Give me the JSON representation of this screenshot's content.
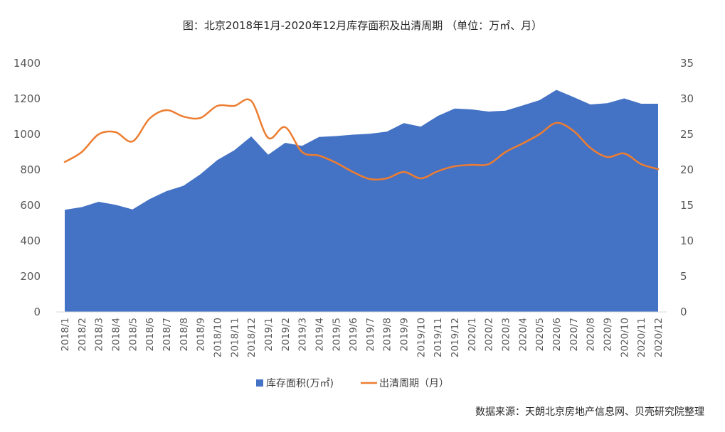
{
  "chart_data": {
    "type": "area",
    "title": "图：北京2018年1月-2020年12月库存面积及出清周期 （单位：万㎡、月）",
    "categories": [
      "2018/1",
      "2018/2",
      "2018/3",
      "2018/4",
      "2018/5",
      "2018/6",
      "2018/7",
      "2018/8",
      "2018/9",
      "2018/10",
      "2018/11",
      "2018/12",
      "2019/1",
      "2019/2",
      "2019/3",
      "2019/4",
      "2019/5",
      "2019/6",
      "2019/7",
      "2019/8",
      "2019/9",
      "2019/10",
      "2019/11",
      "2019/12",
      "2020/1",
      "2020/2",
      "2020/3",
      "2020/4",
      "2020/5",
      "2020/6",
      "2020/7",
      "2020/8",
      "2020/9",
      "2020/10",
      "2020/11",
      "2020/12"
    ],
    "series": [
      {
        "name": "库存面积(万㎡)",
        "type": "area",
        "axis": "left",
        "color": "#4472c4",
        "values": [
          575,
          590,
          620,
          603,
          577,
          635,
          680,
          710,
          775,
          855,
          910,
          988,
          885,
          952,
          935,
          985,
          990,
          998,
          1003,
          1015,
          1063,
          1043,
          1103,
          1145,
          1140,
          1128,
          1133,
          1162,
          1192,
          1250,
          1210,
          1168,
          1175,
          1202,
          1172,
          1172
        ]
      },
      {
        "name": "出清周期（月）",
        "type": "line",
        "axis": "right",
        "color": "#ed7d31",
        "values": [
          21.1,
          22.5,
          25.0,
          25.3,
          24.0,
          27.2,
          28.4,
          27.5,
          27.3,
          29.0,
          29.0,
          29.7,
          24.5,
          26.0,
          22.5,
          22.0,
          21.0,
          19.7,
          18.7,
          18.8,
          19.7,
          18.8,
          19.8,
          20.5,
          20.7,
          20.8,
          22.5,
          23.7,
          25.0,
          26.6,
          25.5,
          23.1,
          21.8,
          22.3,
          20.8,
          20.1
        ]
      }
    ],
    "y_left": {
      "min": 0,
      "max": 1400,
      "ticks": [
        0,
        200,
        400,
        600,
        800,
        1000,
        1200,
        1400
      ]
    },
    "y_right": {
      "min": 0,
      "max": 35,
      "ticks": [
        0,
        5,
        10,
        15,
        20,
        25,
        30,
        35
      ]
    },
    "legend": "bottom-center",
    "grid": false,
    "source": "数据来源：天朗北京房地产信息网、贝壳研究院整理"
  }
}
